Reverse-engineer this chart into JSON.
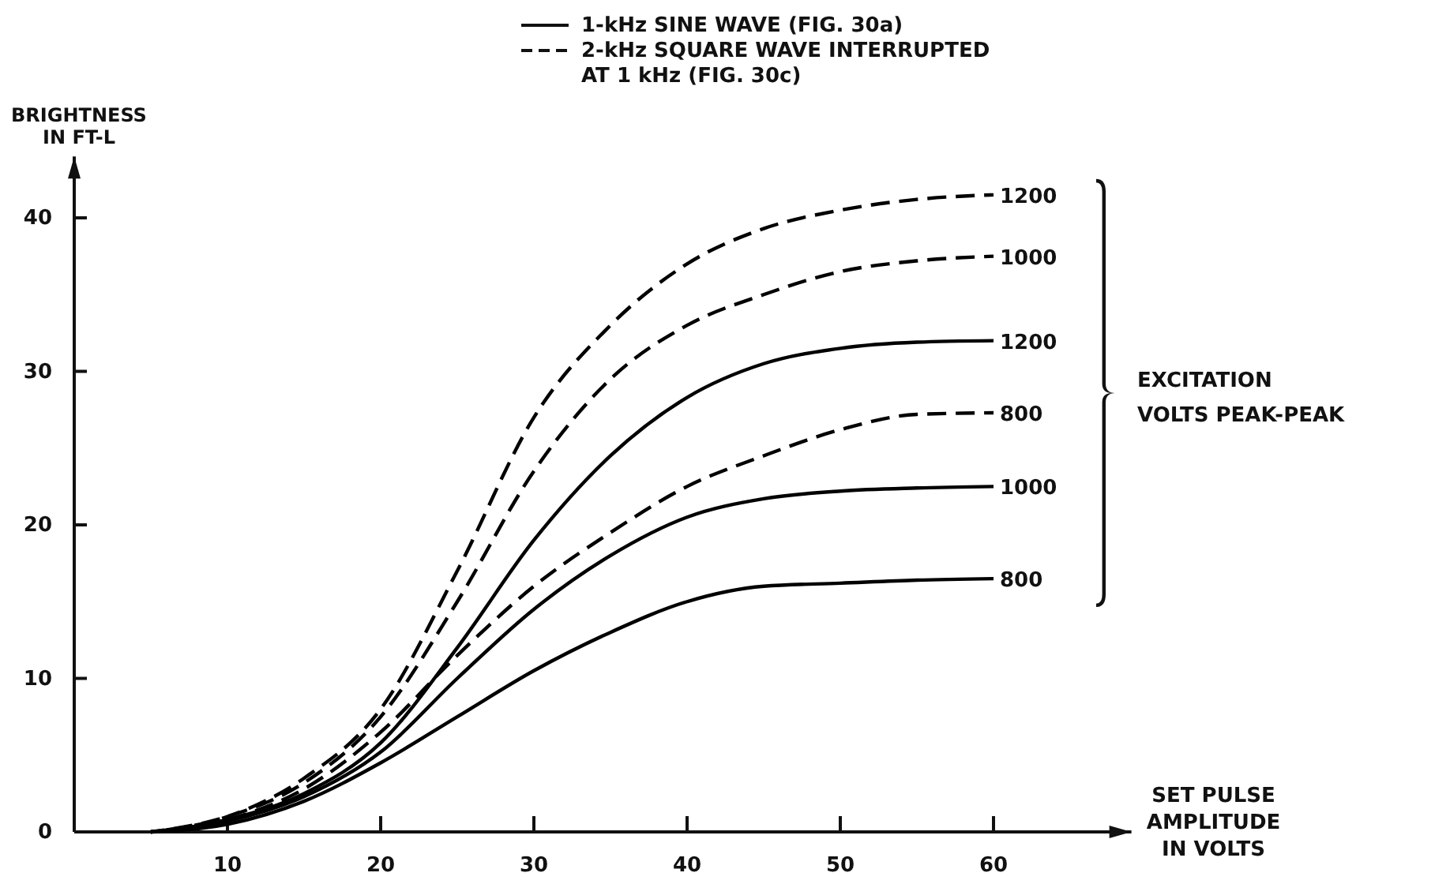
{
  "chart_data": {
    "type": "line",
    "xlabel": "SET PULSE\nAMPLITUDE\nIN VOLTS",
    "ylabel": "BRIGHTNESS\nIN FT-L",
    "x": [
      5,
      10,
      15,
      20,
      25,
      30,
      35,
      40,
      45,
      50,
      55,
      60
    ],
    "xlim": [
      0,
      69
    ],
    "ylim": [
      0,
      44
    ],
    "xticks": [
      10,
      20,
      30,
      40,
      50,
      60
    ],
    "yticks": [
      0,
      10,
      20,
      30,
      40
    ],
    "grid": false,
    "annotations": [
      "1-kHz SINE WAVE (FIG. 30a)",
      "2-kHz SQUARE WAVE INTERRUPTED\nAT 1 kHz (FIG. 30c)",
      "EXCITATION\nVOLTS PEAK-PEAK"
    ],
    "series": [
      {
        "name": "1200",
        "color": "#000000",
        "line_style": "solid",
        "values": [
          0,
          0.8,
          2.5,
          5.8,
          12,
          19,
          24.5,
          28.3,
          30.5,
          31.5,
          31.9,
          32
        ]
      },
      {
        "name": "1000",
        "color": "#000000",
        "line_style": "solid",
        "values": [
          0,
          0.7,
          2.3,
          5.2,
          10,
          14.5,
          18,
          20.5,
          21.7,
          22.2,
          22.4,
          22.5
        ]
      },
      {
        "name": "800",
        "color": "#000000",
        "line_style": "solid",
        "values": [
          0,
          0.5,
          2,
          4.5,
          7.5,
          10.5,
          13,
          15,
          16,
          16.2,
          16.4,
          16.5
        ]
      },
      {
        "name": "1200",
        "color": "#000000",
        "line_style": "dashed",
        "values": [
          0,
          1,
          3.5,
          8,
          17,
          27,
          33,
          37,
          39.3,
          40.5,
          41.2,
          41.5
        ]
      },
      {
        "name": "1000",
        "color": "#000000",
        "line_style": "dashed",
        "values": [
          0,
          1,
          3.2,
          7.5,
          15,
          23.5,
          29.5,
          33,
          35,
          36.5,
          37.2,
          37.5
        ]
      },
      {
        "name": "800",
        "color": "#000000",
        "line_style": "dashed",
        "values": [
          0,
          0.8,
          2.8,
          6.5,
          11.5,
          16,
          19.5,
          22.5,
          24.5,
          26.2,
          27.2,
          27.3
        ]
      }
    ]
  }
}
